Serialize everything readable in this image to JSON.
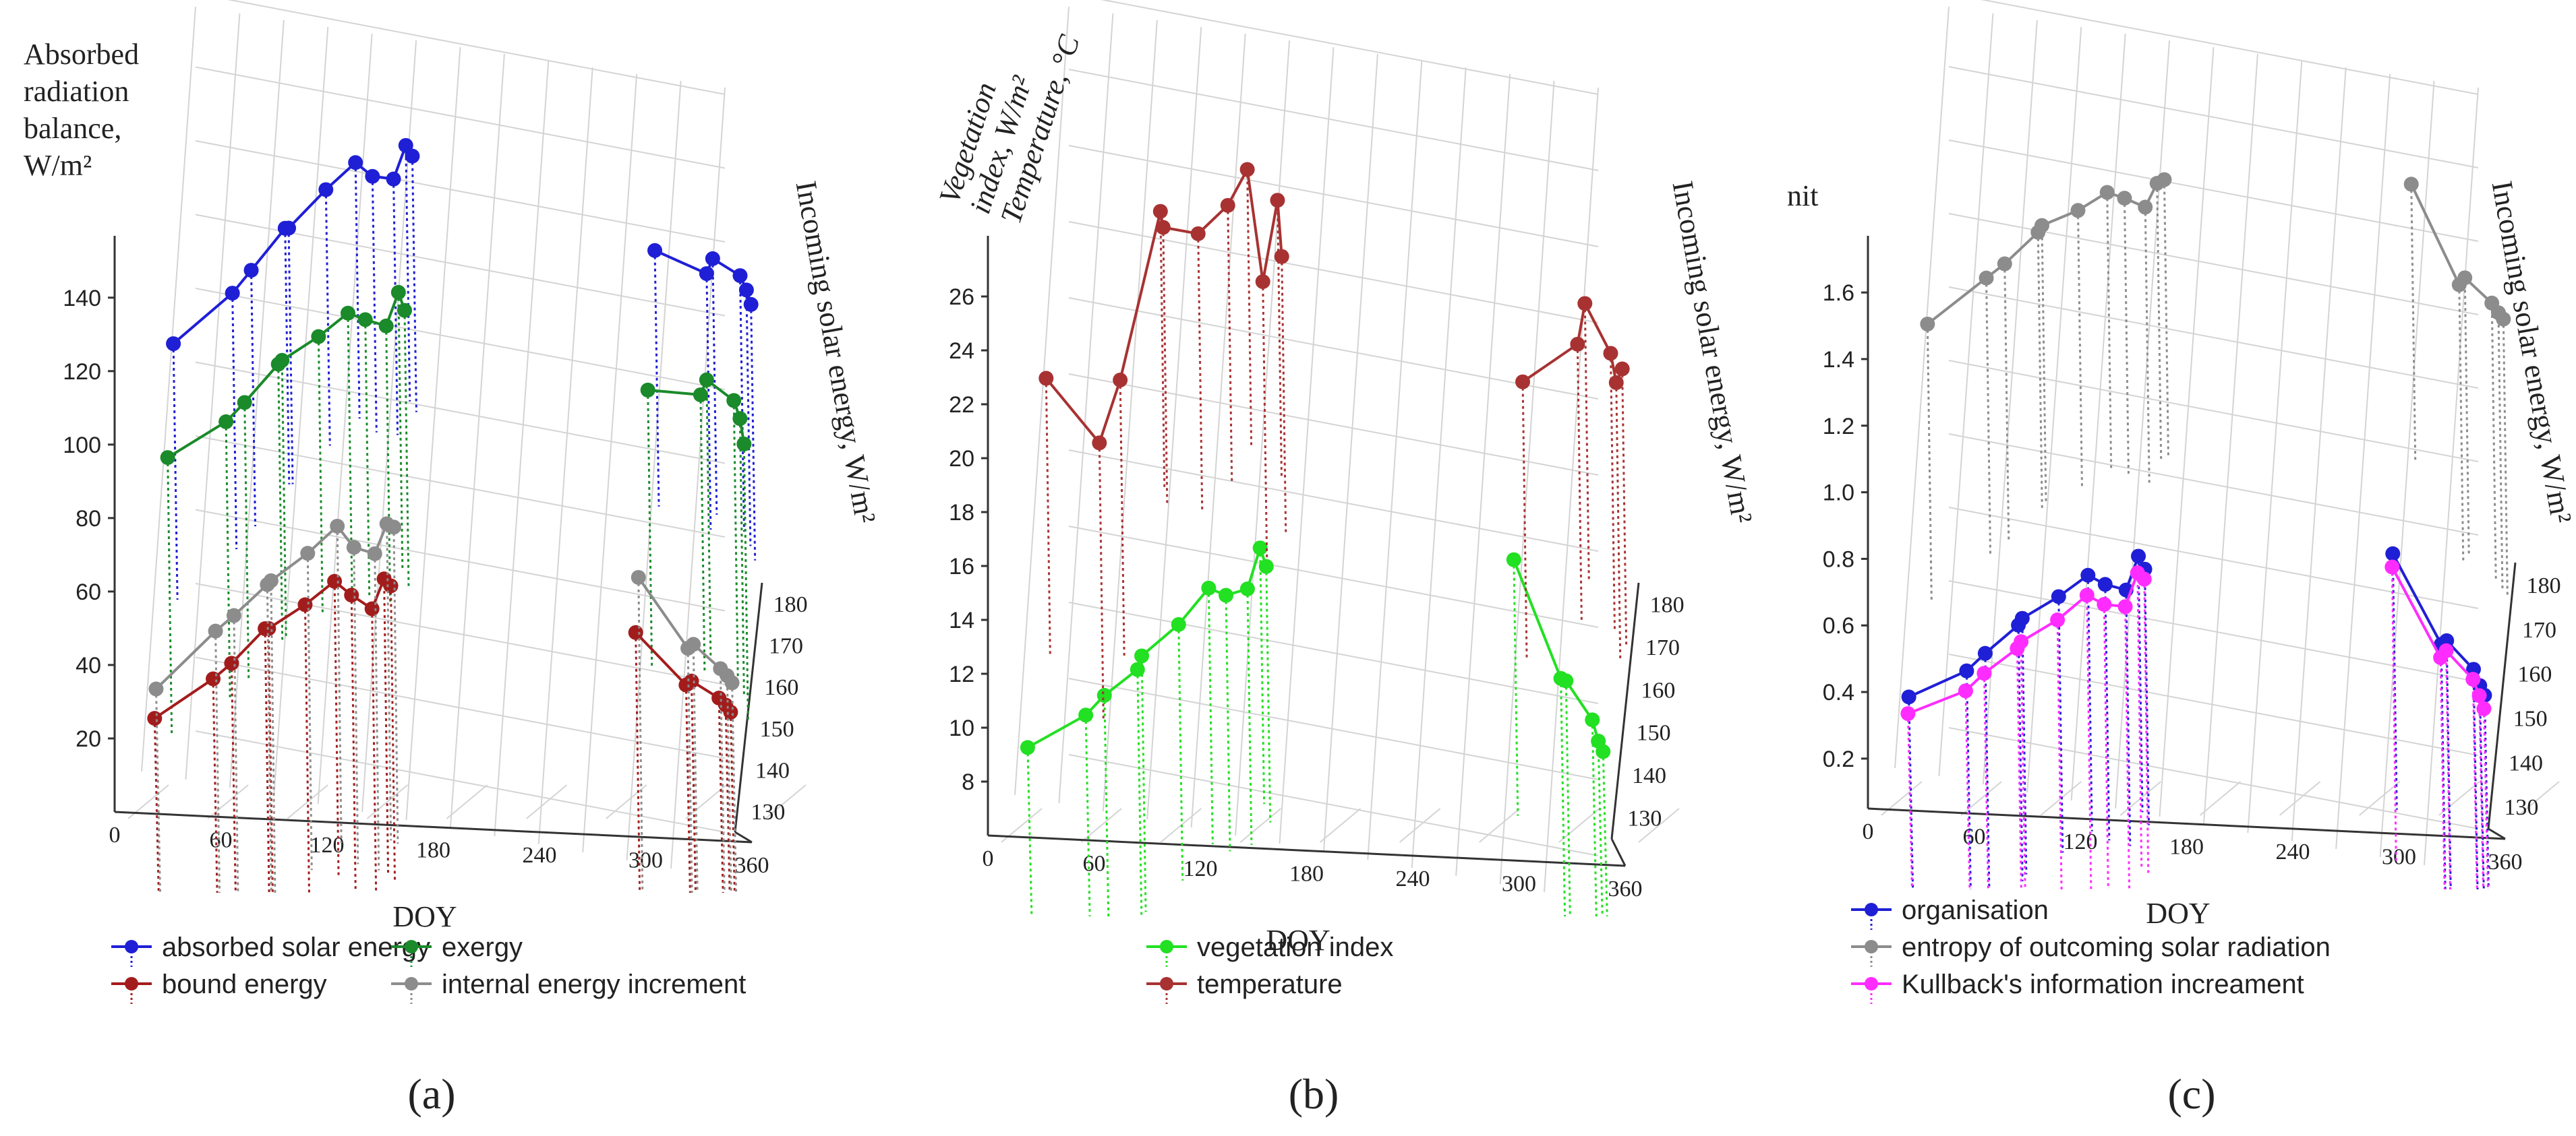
{
  "figure": {
    "panel_labels": [
      "(a)",
      "(b)",
      "(c)"
    ]
  },
  "chart_data": [
    {
      "type": "line",
      "title": "",
      "xlabel": "DOY",
      "ylabel": "Absorbed radiation balance, W/m²",
      "y2label": "Incoming solar energy, W/m²",
      "xlim": [
        0,
        360
      ],
      "ylim": [
        0,
        155
      ],
      "y2lim": [
        125,
        185
      ],
      "xticks": [
        "0",
        "60",
        "120",
        "180",
        "240",
        "300",
        "360"
      ],
      "yticks": [
        "20",
        "40",
        "60",
        "80",
        "100",
        "120",
        "140"
      ],
      "y2ticks": [
        "130",
        "140",
        "150",
        "160",
        "170",
        "180"
      ],
      "x": [
        20,
        52,
        62,
        80,
        82,
        102,
        118,
        128,
        140,
        146,
        150,
        290,
        320,
        323,
        339,
        343,
        346
      ],
      "series": [
        {
          "name": "absorbed solar energy",
          "color": "#1f1fd6",
          "values": [
            127,
            140,
            146,
            157,
            157,
            167,
            174,
            170,
            169,
            178,
            175,
            146,
            139,
            143,
            138,
            134,
            130
          ]
        },
        {
          "name": "exergy",
          "color": "#1a8a2a",
          "values": [
            96,
            105,
            110,
            120,
            121,
            127,
            133,
            131,
            129,
            138,
            133,
            108,
            106,
            110,
            104,
            99,
            92
          ]
        },
        {
          "name": "bound energy",
          "color": "#a31c1c",
          "values": [
            25,
            35,
            39,
            48,
            48,
            54,
            60,
            56,
            52,
            60,
            58,
            42,
            27,
            28,
            23,
            21,
            19
          ]
        },
        {
          "name": "internal energy increment",
          "color": "#8c8c8c",
          "values": [
            33,
            48,
            52,
            60,
            61,
            68,
            75,
            69,
            67,
            75,
            74,
            57,
            37,
            38,
            31,
            29,
            27
          ]
        }
      ],
      "legend": [
        "absorbed solar energy",
        "exergy",
        "bound energy",
        "internal energy increment"
      ]
    },
    {
      "type": "line",
      "title": "",
      "xlabel": "DOY",
      "ylabel": "Vegetation index, W/m² Temperature, °C",
      "y2label": "Incoming solar energy, W/m²",
      "xlim": [
        0,
        360
      ],
      "ylim": [
        6,
        28
      ],
      "y2lim": [
        125,
        185
      ],
      "xticks": [
        "0",
        "60",
        "120",
        "180",
        "240",
        "300",
        "360"
      ],
      "yticks": [
        "8",
        "10",
        "12",
        "14",
        "16",
        "18",
        "20",
        "22",
        "24",
        "26"
      ],
      "y2ticks": [
        "130",
        "140",
        "150",
        "160",
        "170",
        "180"
      ],
      "x": [
        20,
        52,
        62,
        80,
        82,
        102,
        118,
        128,
        140,
        146,
        150,
        290,
        320,
        323,
        339,
        343,
        346
      ],
      "series": [
        {
          "name": "vegetation index",
          "color": "#22e022",
          "values": [
            9.2,
            10.3,
            11.0,
            11.9,
            12.4,
            13.5,
            14.8,
            14.5,
            14.7,
            16.2,
            15.5,
            15.3,
            10.8,
            10.7,
            9.2,
            8.4,
            8.0
          ]
        },
        {
          "name": "temperature",
          "color": "#a83232",
          "values": [
            22.9,
            20.4,
            22.7,
            28.9,
            28.3,
            28.0,
            29.0,
            30.3,
            26.1,
            29.1,
            27.0,
            21.9,
            23.2,
            24.7,
            22.8,
            21.7,
            22.2
          ]
        }
      ],
      "legend": [
        "vegetation index",
        "temperature"
      ]
    },
    {
      "type": "line",
      "title": "",
      "xlabel": "DOY",
      "ylabel": "nit",
      "y2label": "Incoming solar energy, W/m²",
      "xlim": [
        0,
        360
      ],
      "ylim": [
        0.05,
        1.75
      ],
      "y2lim": [
        125,
        185
      ],
      "xticks": [
        "0",
        "60",
        "120",
        "180",
        "240",
        "300",
        "360"
      ],
      "yticks": [
        "0.2",
        "0.4",
        "0.6",
        "0.8",
        "1.0",
        "1.2",
        "1.4",
        "1.6"
      ],
      "y2ticks": [
        "130",
        "140",
        "150",
        "160",
        "170",
        "180"
      ],
      "x": [
        20,
        52,
        62,
        80,
        82,
        102,
        118,
        128,
        140,
        146,
        150,
        290,
        320,
        323,
        339,
        343,
        346
      ],
      "series": [
        {
          "name": "organisation",
          "color": "#1f1fd6",
          "values": [
            0.38,
            0.45,
            0.5,
            0.58,
            0.6,
            0.66,
            0.72,
            0.69,
            0.67,
            0.77,
            0.73,
            0.74,
            0.46,
            0.47,
            0.38,
            0.33,
            0.3
          ]
        },
        {
          "name": "entropy of outcoming solar radiation",
          "color": "#8c8c8c",
          "values": [
            1.5,
            1.63,
            1.67,
            1.76,
            1.78,
            1.82,
            1.87,
            1.85,
            1.82,
            1.89,
            1.9,
            1.85,
            1.54,
            1.56,
            1.48,
            1.45,
            1.43
          ]
        },
        {
          "name": "Kullback's information increament",
          "color": "#ff2cff",
          "values": [
            0.33,
            0.39,
            0.44,
            0.51,
            0.53,
            0.59,
            0.66,
            0.63,
            0.62,
            0.72,
            0.7,
            0.7,
            0.42,
            0.44,
            0.35,
            0.3,
            0.26
          ]
        }
      ],
      "legend": [
        "organisation",
        "entropy of outcoming solar radiation",
        "Kullback's information increament"
      ]
    }
  ]
}
